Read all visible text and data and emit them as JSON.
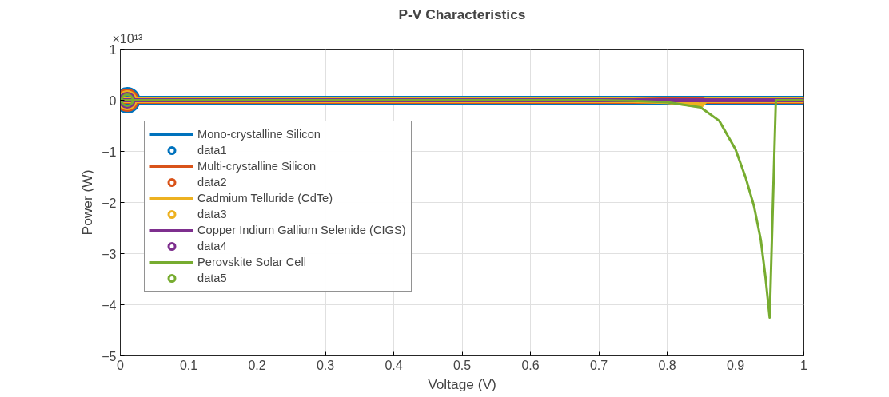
{
  "chart_data": {
    "type": "line",
    "title": "P-V Characteristics",
    "xlabel": "Voltage (V)",
    "ylabel": "Power (W)",
    "annotations": [
      "×10¹³"
    ],
    "xlim": [
      0,
      1
    ],
    "xticks": [
      0,
      0.1,
      0.2,
      0.3,
      0.4,
      0.5,
      0.6,
      0.7,
      0.8,
      0.9,
      1
    ],
    "ylim": [
      -5,
      1
    ],
    "yticks": [
      -5,
      -4,
      -3,
      -2,
      -1,
      0,
      1
    ],
    "grid": true,
    "legend": "left",
    "line_style": "solid",
    "series": [
      {
        "name": "Mono-crystalline Silicon",
        "color": "#0072bd",
        "x": [
          0,
          1
        ],
        "values": [
          0,
          0
        ]
      },
      {
        "name": "data1",
        "type": "scatter",
        "marker": "circle",
        "color": "#0072bd",
        "x": [
          0.01
        ],
        "values": [
          0
        ]
      },
      {
        "name": "Multi-crystalline Silicon",
        "color": "#d95319",
        "x": [
          0,
          1
        ],
        "values": [
          0,
          0
        ]
      },
      {
        "name": "data2",
        "type": "scatter",
        "marker": "circle",
        "color": "#d95319",
        "x": [
          0.01
        ],
        "values": [
          0
        ]
      },
      {
        "name": "Cadmium Telluride (CdTe)",
        "color": "#edb120",
        "x": [
          0,
          0.75,
          0.8,
          0.822,
          0.849,
          0.856,
          1
        ],
        "values": [
          0,
          0,
          -0.02,
          -0.05,
          -0.1,
          0,
          0
        ]
      },
      {
        "name": "data3",
        "type": "scatter",
        "marker": "circle",
        "color": "#edb120",
        "x": [
          0.01
        ],
        "values": [
          0
        ]
      },
      {
        "name": "Copper Indium Gallium Selenide (CIGS)",
        "color": "#7e2f8e",
        "x": [
          0,
          1
        ],
        "values": [
          0,
          0
        ]
      },
      {
        "name": "data4",
        "type": "scatter",
        "marker": "circle",
        "color": "#7e2f8e",
        "x": [
          0.01
        ],
        "values": [
          0
        ]
      },
      {
        "name": "Perovskite Solar Cell",
        "color": "#77ac30",
        "x": [
          0,
          0.7,
          0.75,
          0.8,
          0.849,
          0.876,
          0.9,
          0.915,
          0.927,
          0.937,
          0.944,
          0.95,
          0.959,
          1
        ],
        "values": [
          0,
          0,
          -0.01,
          -0.04,
          -0.14,
          -0.4,
          -0.96,
          -1.52,
          -2.07,
          -2.73,
          -3.48,
          -4.25,
          0,
          0
        ]
      },
      {
        "name": "data5",
        "type": "scatter",
        "marker": "circle",
        "color": "#77ac30",
        "x": [
          0.01
        ],
        "values": [
          0
        ]
      }
    ]
  }
}
